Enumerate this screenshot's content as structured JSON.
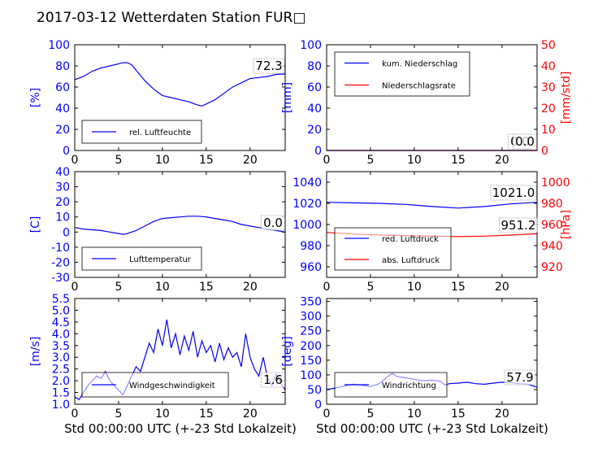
{
  "figure": {
    "title": "2017-03-12 Wetterdaten Station FUR□",
    "xlabel": "Std 00:00:00 UTC (+-23 Std Lokalzeit)"
  },
  "chart_data": [
    {
      "id": "humidity",
      "type": "line",
      "ylabel": "[%]",
      "xlim": [
        0,
        24
      ],
      "ylim": [
        0,
        100
      ],
      "xticks": [
        0,
        5,
        10,
        15,
        20
      ],
      "yticks": [
        0,
        20,
        40,
        60,
        80,
        100
      ],
      "legend": "bottom-left",
      "series": [
        {
          "name": "rel. Luftfeuchte",
          "color": "#0000ff",
          "x": [
            0,
            1,
            2,
            3,
            4,
            5,
            5.5,
            6,
            6.5,
            7,
            8,
            9,
            10,
            11,
            12,
            13,
            14,
            14.5,
            15,
            16,
            17,
            18,
            19,
            20,
            21,
            22,
            23,
            24
          ],
          "y": [
            67,
            70,
            75,
            78,
            80,
            82,
            83,
            83,
            81,
            76,
            66,
            58,
            52,
            50,
            48,
            46,
            43,
            42,
            44,
            48,
            54,
            60,
            64,
            68,
            69,
            70,
            72,
            72.3
          ]
        }
      ],
      "last_value": "72.3"
    },
    {
      "id": "precip",
      "type": "line",
      "ylabel": "[mm]",
      "ylabel_right": "[mm/std]",
      "xlim": [
        0,
        24
      ],
      "ylim": [
        0,
        100
      ],
      "ylim_right": [
        0,
        50
      ],
      "xticks": [
        0,
        5,
        10,
        15,
        20
      ],
      "yticks": [
        0,
        20,
        40,
        60,
        80,
        100
      ],
      "yticks_right": [
        0,
        10,
        20,
        30,
        40,
        50
      ],
      "legend": "top-left",
      "series": [
        {
          "name": "kum. Niederschlag",
          "color": "#0000ff",
          "axis": "left",
          "x": [
            0,
            24
          ],
          "y": [
            0,
            0
          ]
        },
        {
          "name": "Niederschlagsrate",
          "color": "#ff0000",
          "axis": "right",
          "x": [
            0,
            24
          ],
          "y": [
            0,
            0
          ]
        }
      ],
      "last_value": "0.0",
      "last_value_2": "0.0"
    },
    {
      "id": "temperature",
      "type": "line",
      "ylabel": "[C]",
      "xlim": [
        0,
        24
      ],
      "ylim": [
        -30,
        40
      ],
      "xticks": [
        0,
        5,
        10,
        15,
        20
      ],
      "yticks": [
        -30,
        -20,
        -10,
        0,
        10,
        20,
        30,
        40
      ],
      "legend": "bottom-left",
      "series": [
        {
          "name": "Lufttemperatur",
          "color": "#0000ff",
          "x": [
            0,
            1,
            2,
            3,
            4,
            5,
            5.5,
            6,
            7,
            8,
            9,
            10,
            11,
            12,
            13,
            14,
            15,
            16,
            17,
            18,
            19,
            20,
            21,
            22,
            23,
            24
          ],
          "y": [
            3,
            2,
            1.5,
            1,
            0,
            -1,
            -1.5,
            -1,
            1,
            4,
            7,
            9,
            9.5,
            10,
            10.5,
            10.5,
            10,
            9,
            8,
            7,
            5,
            4,
            3,
            2,
            1,
            0
          ]
        }
      ],
      "last_value": "0.0"
    },
    {
      "id": "pressure",
      "type": "line",
      "ylabel": "",
      "ylabel_right": "[hPa]",
      "xlim": [
        0,
        24
      ],
      "ylim": [
        950,
        1050
      ],
      "ylim_right": [
        910,
        1010
      ],
      "xticks": [
        0,
        5,
        10,
        15,
        20
      ],
      "yticks": [
        960,
        980,
        1000,
        1020,
        1040
      ],
      "yticks_right": [
        920,
        940,
        960,
        980,
        1000
      ],
      "legend": "bottom-left",
      "series": [
        {
          "name": "red. Luftdruck",
          "color": "#0000ff",
          "axis": "left",
          "x": [
            0,
            3,
            6,
            9,
            12,
            15,
            18,
            21,
            24
          ],
          "y": [
            1021,
            1020.5,
            1020,
            1019,
            1017,
            1015.5,
            1017,
            1019.5,
            1021
          ]
        },
        {
          "name": "abs. Luftdruck",
          "color": "#ff0000",
          "axis": "right",
          "x": [
            0,
            3,
            6,
            9,
            12,
            15,
            18,
            21,
            24
          ],
          "y": [
            952.5,
            951,
            950,
            949.5,
            949,
            948.5,
            949,
            950,
            951.2
          ]
        }
      ],
      "last_value": "1021.0",
      "last_value_2": "951.2"
    },
    {
      "id": "wind",
      "type": "line",
      "ylabel": "[m/s]",
      "xlim": [
        0,
        24
      ],
      "ylim": [
        1,
        5.5
      ],
      "xticks": [
        0,
        5,
        10,
        15,
        20
      ],
      "yticks": [
        1.0,
        1.5,
        2.0,
        2.5,
        3.0,
        3.5,
        4.0,
        4.5,
        5.0,
        5.5
      ],
      "ytick_labels": [
        "1.0",
        "1.5",
        "2.0",
        "2.5",
        "3.0",
        "3.5",
        "4.0",
        "4.5",
        "5.0",
        "5.5"
      ],
      "legend": "bottom-left",
      "series": [
        {
          "name": "Windgeschwindigkeit",
          "color": "#0000ff",
          "x": [
            0,
            0.5,
            1,
            1.5,
            2,
            2.5,
            3,
            3.5,
            4,
            4.5,
            5,
            5.5,
            6,
            6.5,
            7,
            7.5,
            8,
            8.5,
            9,
            9.5,
            10,
            10.5,
            11,
            11.5,
            12,
            12.5,
            13,
            13.5,
            14,
            14.5,
            15,
            15.5,
            16,
            16.5,
            17,
            17.5,
            18,
            18.5,
            19,
            19.5,
            20,
            20.5,
            21,
            21.5,
            22,
            22.5,
            23,
            23.5,
            24
          ],
          "y": [
            1.3,
            1.2,
            1.5,
            1.8,
            2.0,
            2.2,
            2.1,
            2.4,
            2.0,
            1.8,
            1.6,
            1.4,
            1.8,
            2.2,
            2.6,
            2.4,
            3.0,
            3.6,
            3.2,
            4.2,
            3.5,
            4.6,
            3.4,
            4.0,
            3.1,
            3.9,
            3.3,
            4.1,
            3.0,
            3.7,
            3.2,
            3.5,
            2.8,
            3.6,
            2.9,
            3.4,
            3.0,
            3.2,
            2.6,
            4.0,
            3.0,
            2.5,
            2.2,
            3.0,
            2.1,
            1.8,
            2.3,
            1.9,
            1.6
          ]
        }
      ],
      "last_value": "1.6"
    },
    {
      "id": "direction",
      "type": "line",
      "ylabel": "[deg]",
      "xlim": [
        0,
        24
      ],
      "ylim": [
        0,
        360
      ],
      "xticks": [
        0,
        5,
        10,
        15,
        20
      ],
      "yticks": [
        0,
        50,
        100,
        150,
        200,
        250,
        300,
        350
      ],
      "legend": "bottom-left",
      "series": [
        {
          "name": "Windrichtung",
          "color": "#0000ff",
          "x": [
            0,
            1,
            2,
            3,
            4,
            5,
            6,
            7,
            7.5,
            8,
            9,
            10,
            11,
            12,
            13,
            13.5,
            14,
            15,
            16,
            17,
            18,
            19,
            20,
            21,
            22,
            23,
            24
          ],
          "y": [
            50,
            55,
            62,
            68,
            65,
            60,
            70,
            95,
            105,
            95,
            90,
            85,
            80,
            82,
            78,
            65,
            70,
            72,
            75,
            70,
            68,
            72,
            75,
            74,
            70,
            68,
            57.9
          ]
        }
      ],
      "last_value": "57.9"
    }
  ]
}
